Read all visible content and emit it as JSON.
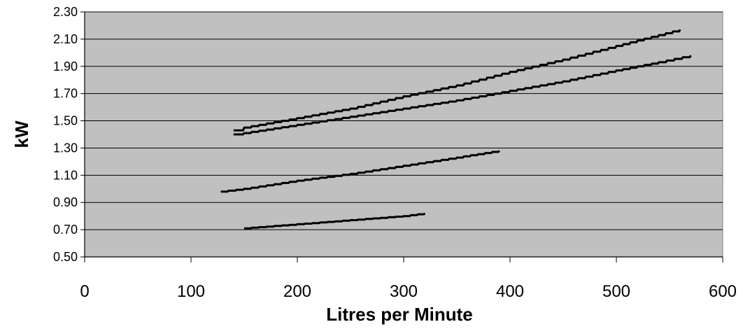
{
  "chart_data": {
    "type": "line",
    "title": "",
    "xlabel": "Litres per Minute",
    "ylabel": "kW",
    "xlim": [
      0,
      600
    ],
    "ylim": [
      0.5,
      2.3
    ],
    "xticks": [
      0,
      100,
      200,
      300,
      400,
      500,
      600
    ],
    "yticks": [
      0.5,
      0.7,
      0.9,
      1.1,
      1.3,
      1.5,
      1.7,
      1.9,
      2.1,
      2.3
    ],
    "xtick_labels": [
      "0",
      "100",
      "200",
      "300",
      "400",
      "500",
      "600"
    ],
    "ytick_labels": [
      "0.50",
      "0.70",
      "0.90",
      "1.10",
      "1.30",
      "1.50",
      "1.70",
      "1.90",
      "2.10",
      "2.30"
    ],
    "grid": "horizontal",
    "legend": "none",
    "plot_background": "#c0c0c0",
    "line_color": "#000000",
    "series": [
      {
        "x": [
          140,
          150,
          200,
          250,
          300,
          350,
          400,
          450,
          500,
          540,
          560
        ],
        "y": [
          1.43,
          1.45,
          1.52,
          1.59,
          1.68,
          1.76,
          1.86,
          1.95,
          2.05,
          2.13,
          2.17
        ]
      },
      {
        "x": [
          140,
          150,
          200,
          250,
          300,
          350,
          400,
          450,
          500,
          540,
          570
        ],
        "y": [
          1.4,
          1.41,
          1.47,
          1.53,
          1.59,
          1.65,
          1.72,
          1.79,
          1.87,
          1.93,
          1.98
        ]
      },
      {
        "x": [
          128,
          150,
          200,
          250,
          300,
          350,
          390
        ],
        "y": [
          0.98,
          1.0,
          1.06,
          1.11,
          1.17,
          1.23,
          1.28
        ]
      },
      {
        "x": [
          150,
          200,
          250,
          300,
          320
        ],
        "y": [
          0.71,
          0.74,
          0.77,
          0.8,
          0.82
        ]
      }
    ]
  }
}
